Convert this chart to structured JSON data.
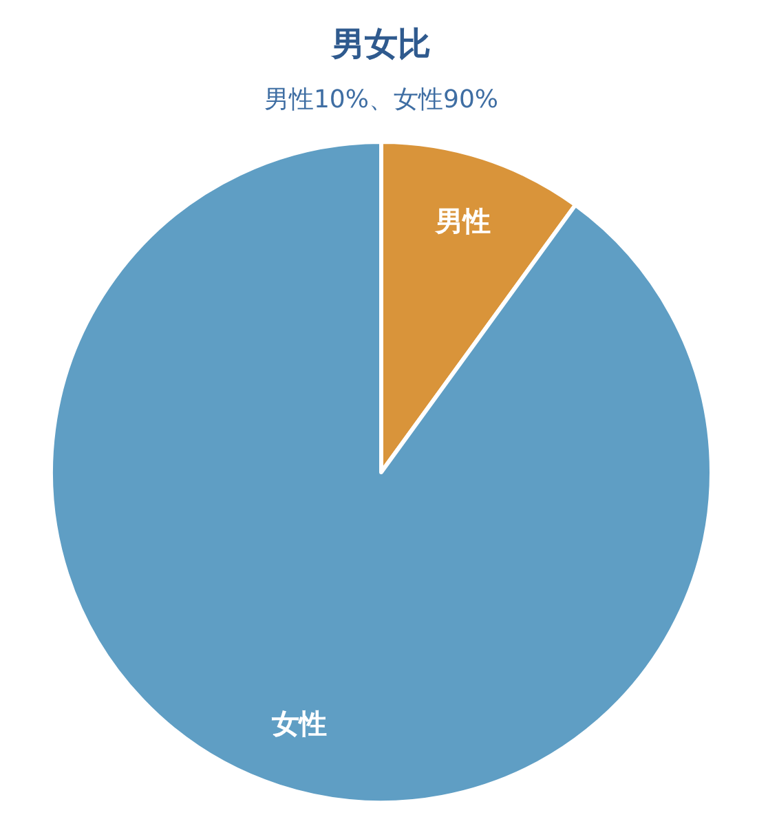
{
  "chart_data": {
    "type": "pie",
    "title": "男女比",
    "subtitle": "男性10%、女性90%",
    "categories": [
      "男性",
      "女性"
    ],
    "values": [
      10,
      90
    ],
    "colors": [
      "#d9943a",
      "#5f9ec4"
    ]
  }
}
